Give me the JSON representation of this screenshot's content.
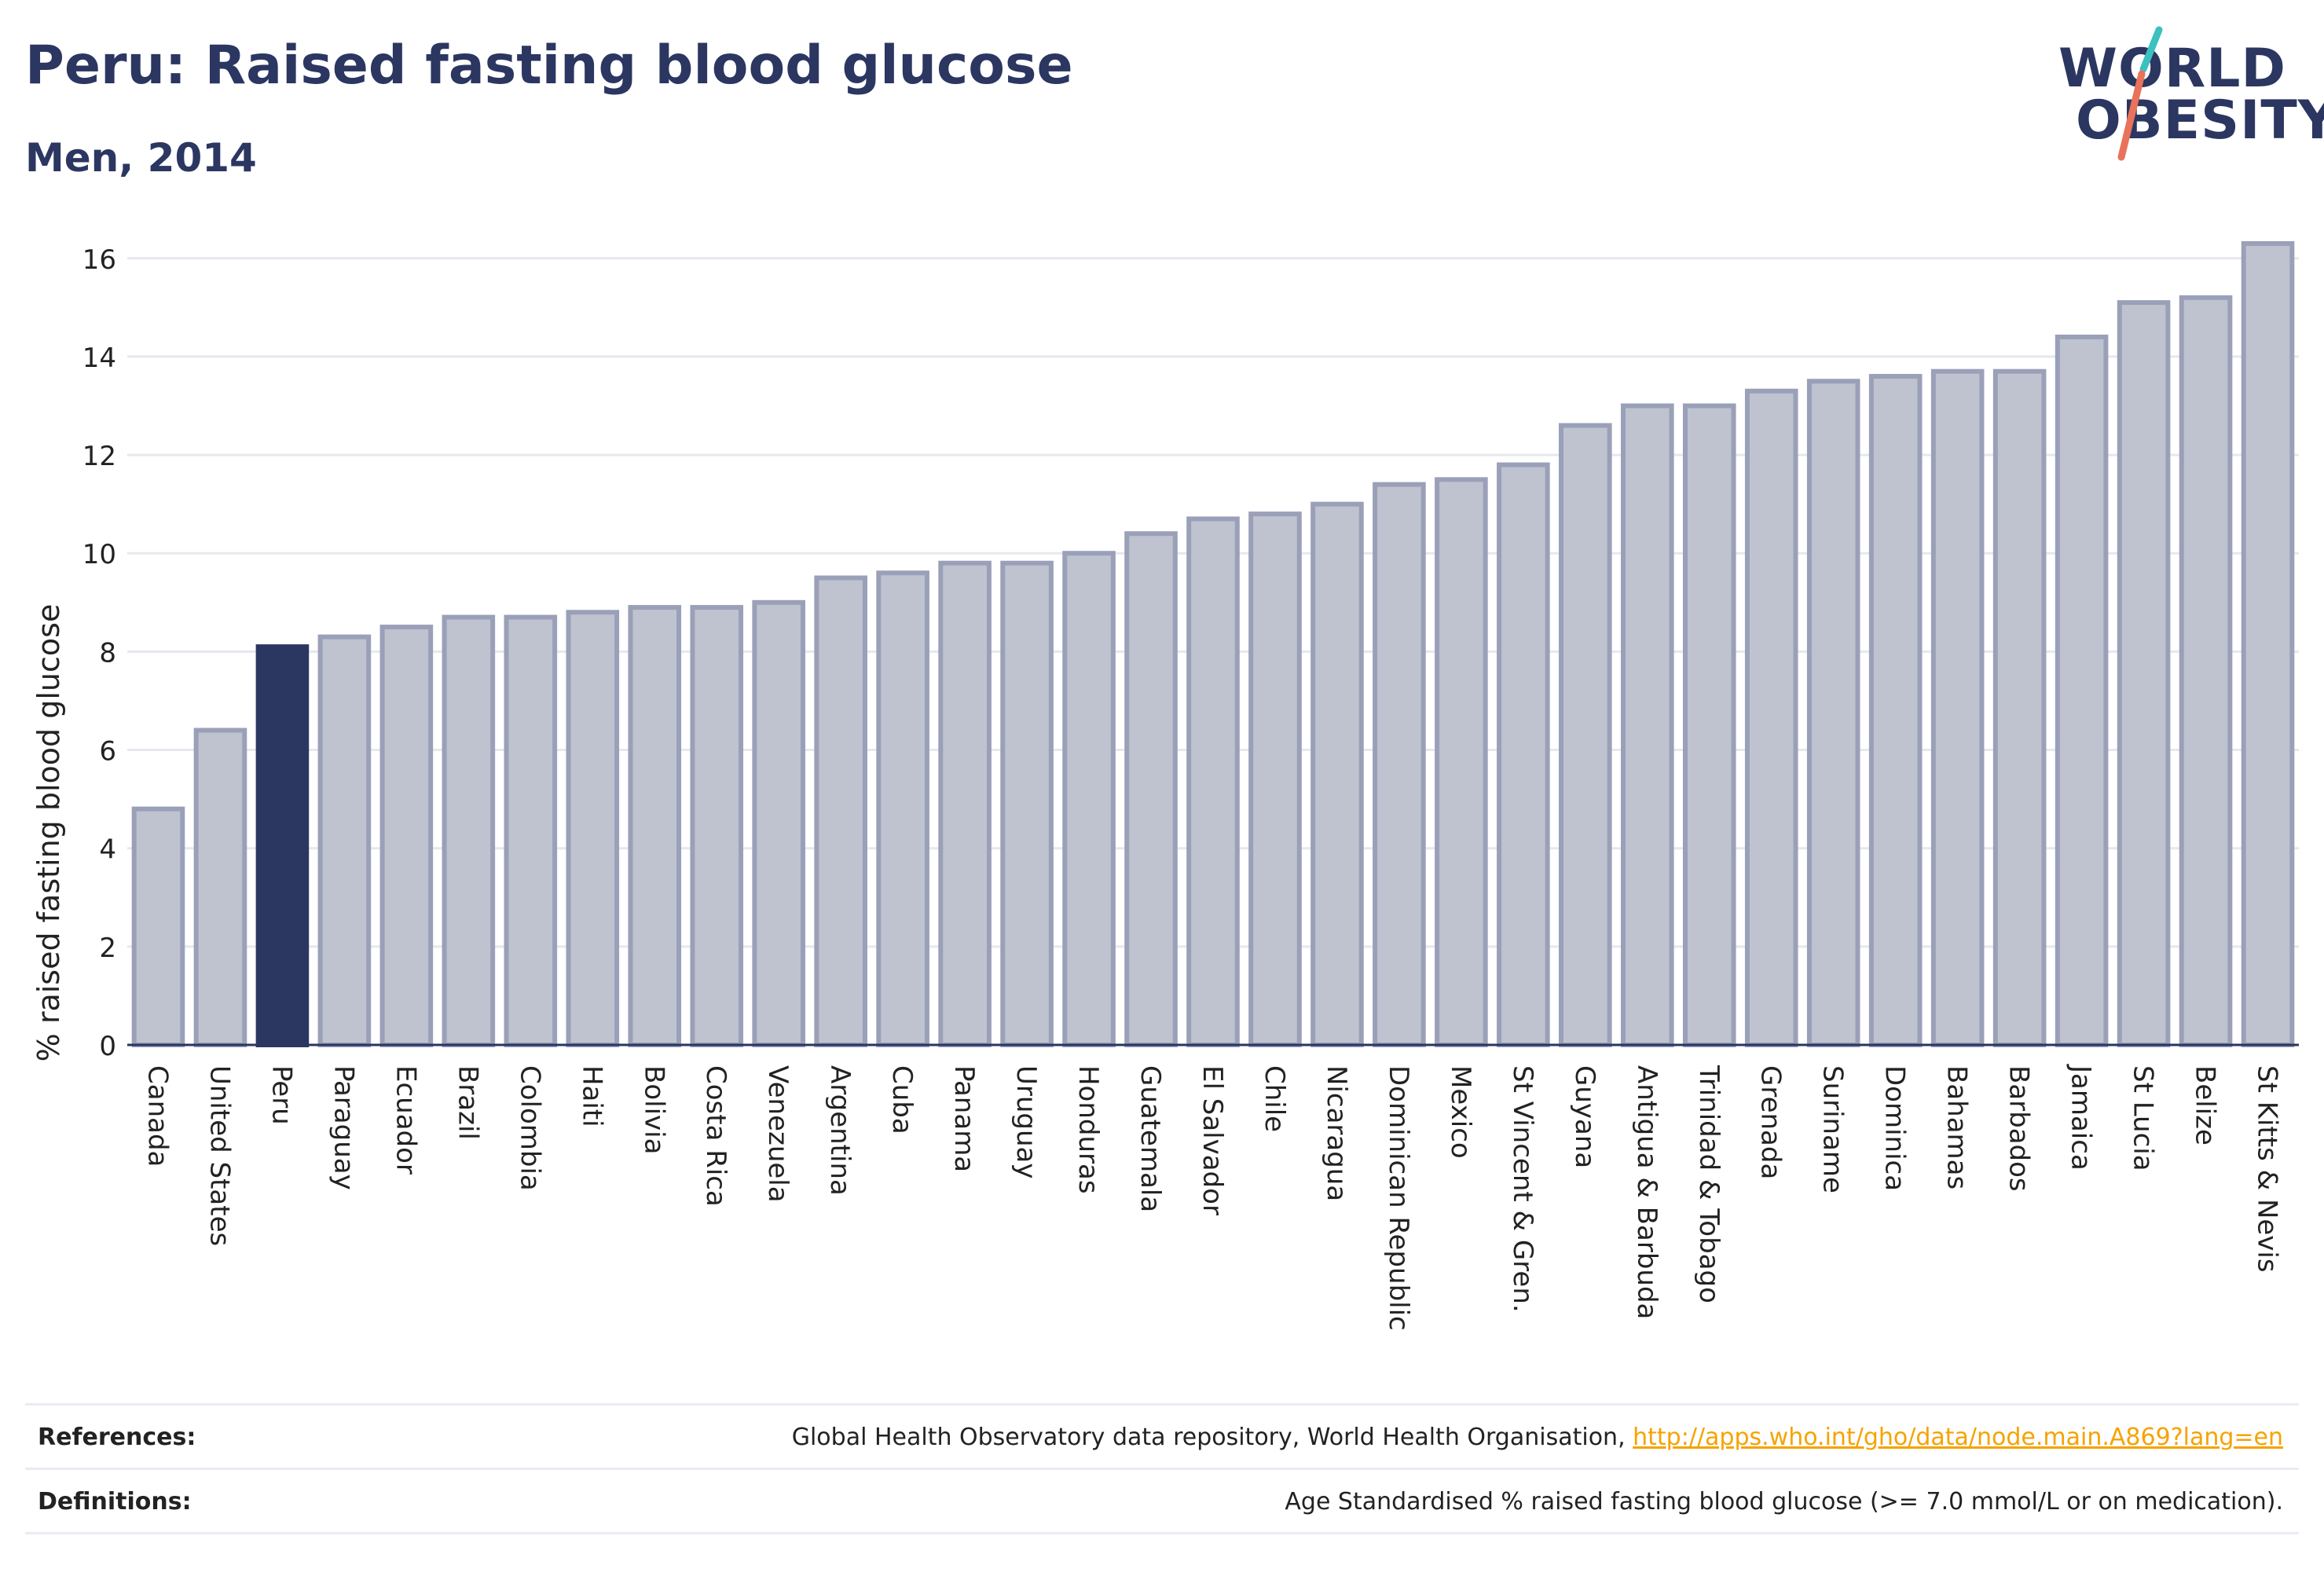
{
  "header": {
    "title": "Peru: Raised fasting blood glucose",
    "subtitle": "Men, 2014"
  },
  "logo": {
    "line1": "WORLD",
    "line2": "OBESITY"
  },
  "colors": {
    "brand": "#2b3661",
    "highlight_bar": "#2b3661",
    "bar_fill": "#bfc3d0",
    "bar_stroke": "#9aa0b8",
    "accent_teal": "#3cc0c0",
    "accent_coral": "#e8735a",
    "link": "#f5a300"
  },
  "chart_data": {
    "type": "bar",
    "ylabel": "% raised fasting blood glucose",
    "ylim": [
      0,
      16.3
    ],
    "yticks": [
      0,
      2,
      4,
      6,
      8,
      10,
      12,
      14,
      16
    ],
    "grid": true,
    "highlight": "Peru",
    "categories": [
      "Canada",
      "United States",
      "Peru",
      "Paraguay",
      "Ecuador",
      "Brazil",
      "Colombia",
      "Haiti",
      "Bolivia",
      "Costa Rica",
      "Venezuela",
      "Argentina",
      "Cuba",
      "Panama",
      "Uruguay",
      "Honduras",
      "Guatemala",
      "El Salvador",
      "Chile",
      "Nicaragua",
      "Dominican Republic",
      "Mexico",
      "St Vincent & Gren.",
      "Guyana",
      "Antigua & Barbuda",
      "Trinidad & Tobago",
      "Grenada",
      "Suriname",
      "Dominica",
      "Bahamas",
      "Barbados",
      "Jamaica",
      "St Lucia",
      "Belize",
      "St Kitts & Nevis"
    ],
    "values": [
      4.8,
      6.4,
      8.1,
      8.3,
      8.5,
      8.7,
      8.7,
      8.8,
      8.9,
      8.9,
      9.0,
      9.5,
      9.6,
      9.8,
      9.8,
      10.0,
      10.4,
      10.7,
      10.8,
      11.0,
      11.4,
      11.5,
      11.8,
      12.6,
      13.0,
      13.0,
      13.3,
      13.5,
      13.6,
      13.7,
      13.7,
      14.4,
      15.1,
      15.2,
      16.3
    ]
  },
  "footer": {
    "references_label": "References:",
    "references_text": "Global Health Observatory data repository, World Health Organisation, ",
    "references_link": "http://apps.who.int/gho/data/node.main.A869?lang=en",
    "definitions_label": "Definitions:",
    "definitions_text": "Age Standardised % raised fasting blood glucose (>= 7.0 mmol/L or on medication)."
  }
}
